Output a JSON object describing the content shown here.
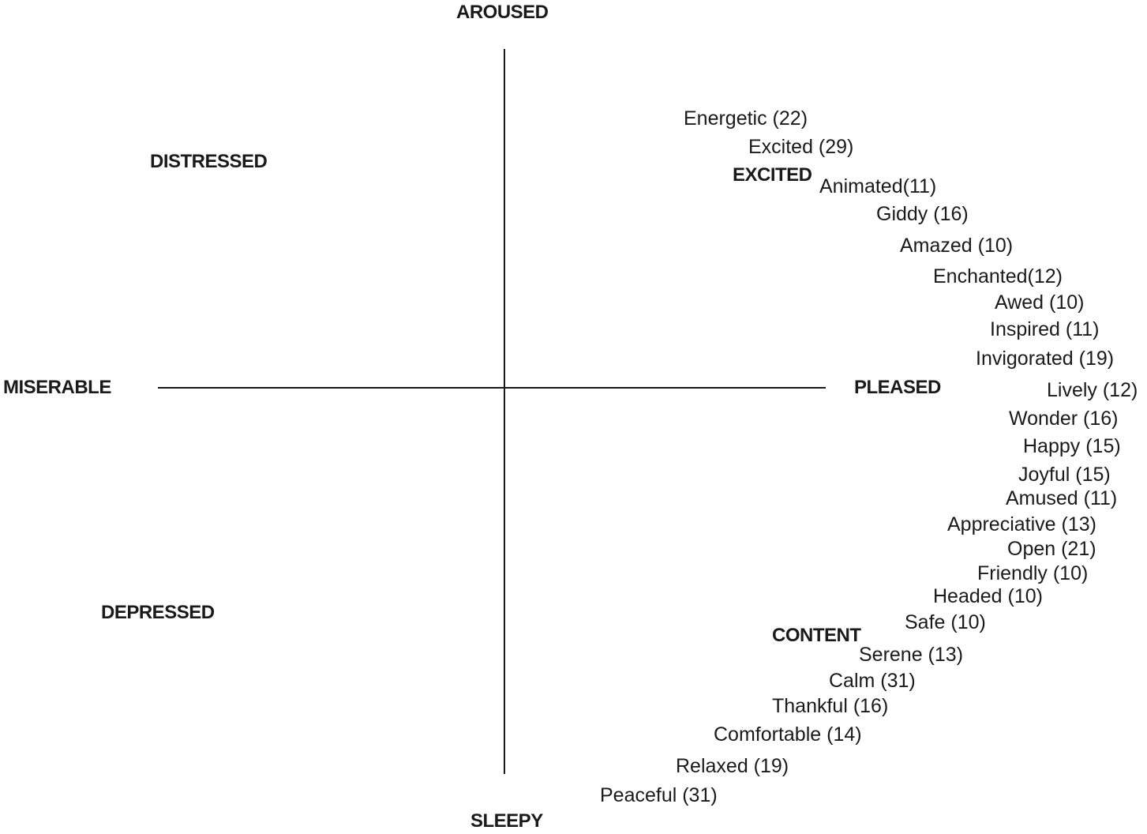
{
  "axes": {
    "top": "AROUSED",
    "bottom": "SLEEPY",
    "left": "MISERABLE",
    "right": "PLEASED"
  },
  "quadrants": {
    "upper_left": "DISTRESSED",
    "lower_left": "DEPRESSED"
  },
  "clusters": {
    "excited": "EXCITED",
    "content": "CONTENT"
  },
  "emotions": [
    {
      "label": "Energetic (22)"
    },
    {
      "label": "Excited (29)"
    },
    {
      "label": "Animated(11)"
    },
    {
      "label": "Giddy (16)"
    },
    {
      "label": "Amazed (10)"
    },
    {
      "label": "Enchanted(12)"
    },
    {
      "label": "Awed (10)"
    },
    {
      "label": "Inspired (11)"
    },
    {
      "label": "Invigorated (19)"
    },
    {
      "label": "Lively (12)"
    },
    {
      "label": "Wonder (16)"
    },
    {
      "label": "Happy (15)"
    },
    {
      "label": "Joyful (15)"
    },
    {
      "label": "Amused (11)"
    },
    {
      "label": "Appreciative (13)"
    },
    {
      "label": "Open (21)"
    },
    {
      "label": "Friendly (10)"
    },
    {
      "label": "Headed (10)"
    },
    {
      "label": "Safe (10)"
    },
    {
      "label": "Serene (13)"
    },
    {
      "label": "Calm (31)"
    },
    {
      "label": "Thankful (16)"
    },
    {
      "label": "Comfortable (14)"
    },
    {
      "label": "Relaxed (19)"
    },
    {
      "label": "Peaceful (31)"
    }
  ]
}
